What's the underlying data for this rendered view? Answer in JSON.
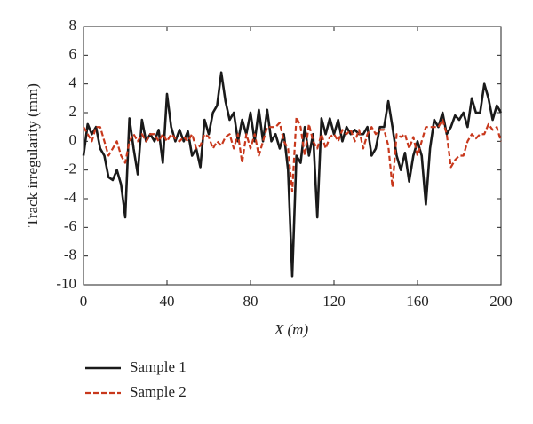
{
  "chart_data": {
    "type": "line",
    "xlabel": "X (m)",
    "ylabel": "Track irregularity (mm)",
    "x": [
      0,
      2,
      4,
      6,
      8,
      10,
      12,
      14,
      16,
      18,
      20,
      22,
      24,
      26,
      28,
      30,
      32,
      34,
      36,
      38,
      40,
      42,
      44,
      46,
      48,
      50,
      52,
      54,
      56,
      58,
      60,
      62,
      64,
      66,
      68,
      70,
      72,
      74,
      76,
      78,
      80,
      82,
      84,
      86,
      88,
      90,
      92,
      94,
      96,
      98,
      100,
      102,
      104,
      106,
      108,
      110,
      112,
      114,
      116,
      118,
      120,
      122,
      124,
      126,
      128,
      130,
      132,
      134,
      136,
      138,
      140,
      142,
      144,
      146,
      148,
      150,
      152,
      154,
      156,
      158,
      160,
      162,
      164,
      166,
      168,
      170,
      172,
      174,
      176,
      178,
      180,
      182,
      184,
      186,
      188,
      190,
      192,
      194,
      196,
      198,
      200
    ],
    "series": [
      {
        "name": "Sample 1",
        "color": "#1a1a1a",
        "dash": false,
        "values": [
          -1,
          1.2,
          0.5,
          1,
          -0.5,
          -1,
          -2.5,
          -2.7,
          -2,
          -3,
          -5.3,
          1.6,
          -0.5,
          -2.3,
          1.5,
          0,
          0.5,
          0,
          0.8,
          -1.5,
          3.3,
          1,
          0,
          0.8,
          0,
          0.7,
          -1,
          -0.5,
          -1.8,
          1.5,
          0.5,
          2,
          2.5,
          4.8,
          2.8,
          1.5,
          2,
          0,
          1.5,
          0.5,
          2,
          0,
          2.2,
          0,
          2.2,
          0,
          0.5,
          -0.5,
          0.5,
          -2,
          -9.4,
          -1,
          -1.5,
          1,
          -1,
          0.5,
          -5.3,
          1.6,
          0.5,
          1.6,
          0.5,
          1.5,
          0,
          1,
          0.5,
          0.8,
          0.5,
          0.5,
          1,
          -1,
          -0.5,
          1,
          1,
          2.8,
          1,
          -1,
          -2,
          -0.8,
          -2.8,
          -1,
          0,
          -1,
          -4.4,
          -0.5,
          1.5,
          1,
          2,
          0.5,
          1,
          1.8,
          1.5,
          2,
          1,
          3,
          2,
          2,
          4,
          3,
          1.5,
          2.5,
          2
        ]
      },
      {
        "name": "Sample 2",
        "color": "#c8381c",
        "dash": true,
        "values": [
          1,
          0.5,
          0,
          1,
          1,
          0,
          -1,
          -0.5,
          0,
          -1,
          -1.5,
          0,
          0.5,
          0,
          0.5,
          0,
          0.5,
          0.5,
          0,
          0.5,
          0,
          0.5,
          0.2,
          0,
          0.3,
          0,
          0.5,
          -0.5,
          -0.3,
          0.5,
          0.3,
          -0.5,
          0,
          -0.3,
          0.3,
          0.5,
          -0.5,
          0.5,
          -1.5,
          0.5,
          -0.5,
          0.5,
          -1,
          0,
          1,
          1,
          1,
          1.3,
          0,
          -0.5,
          -3.5,
          1.7,
          1,
          -1,
          1.2,
          0,
          -0.5,
          0.5,
          -0.5,
          0.3,
          0.5,
          0,
          0.8,
          0.5,
          0.8,
          0,
          0.8,
          -0.5,
          0.5,
          1,
          0.5,
          0.8,
          0.8,
          -0.3,
          -3.2,
          0.5,
          0.3,
          0.5,
          -0.5,
          0.3,
          -1,
          0,
          1,
          1,
          1,
          1,
          1.5,
          0.5,
          -1.8,
          -1.3,
          -1,
          -1,
          0,
          0.5,
          0.2,
          0.5,
          0.5,
          1.2,
          0.8,
          1,
          0
        ]
      }
    ],
    "xlim": [
      0,
      200
    ],
    "xticks": [
      0,
      40,
      80,
      120,
      160,
      200
    ],
    "ylim": [
      -10,
      8
    ],
    "yticks": [
      -10,
      -8,
      -6,
      -4,
      -2,
      0,
      2,
      4,
      6,
      8
    ]
  }
}
